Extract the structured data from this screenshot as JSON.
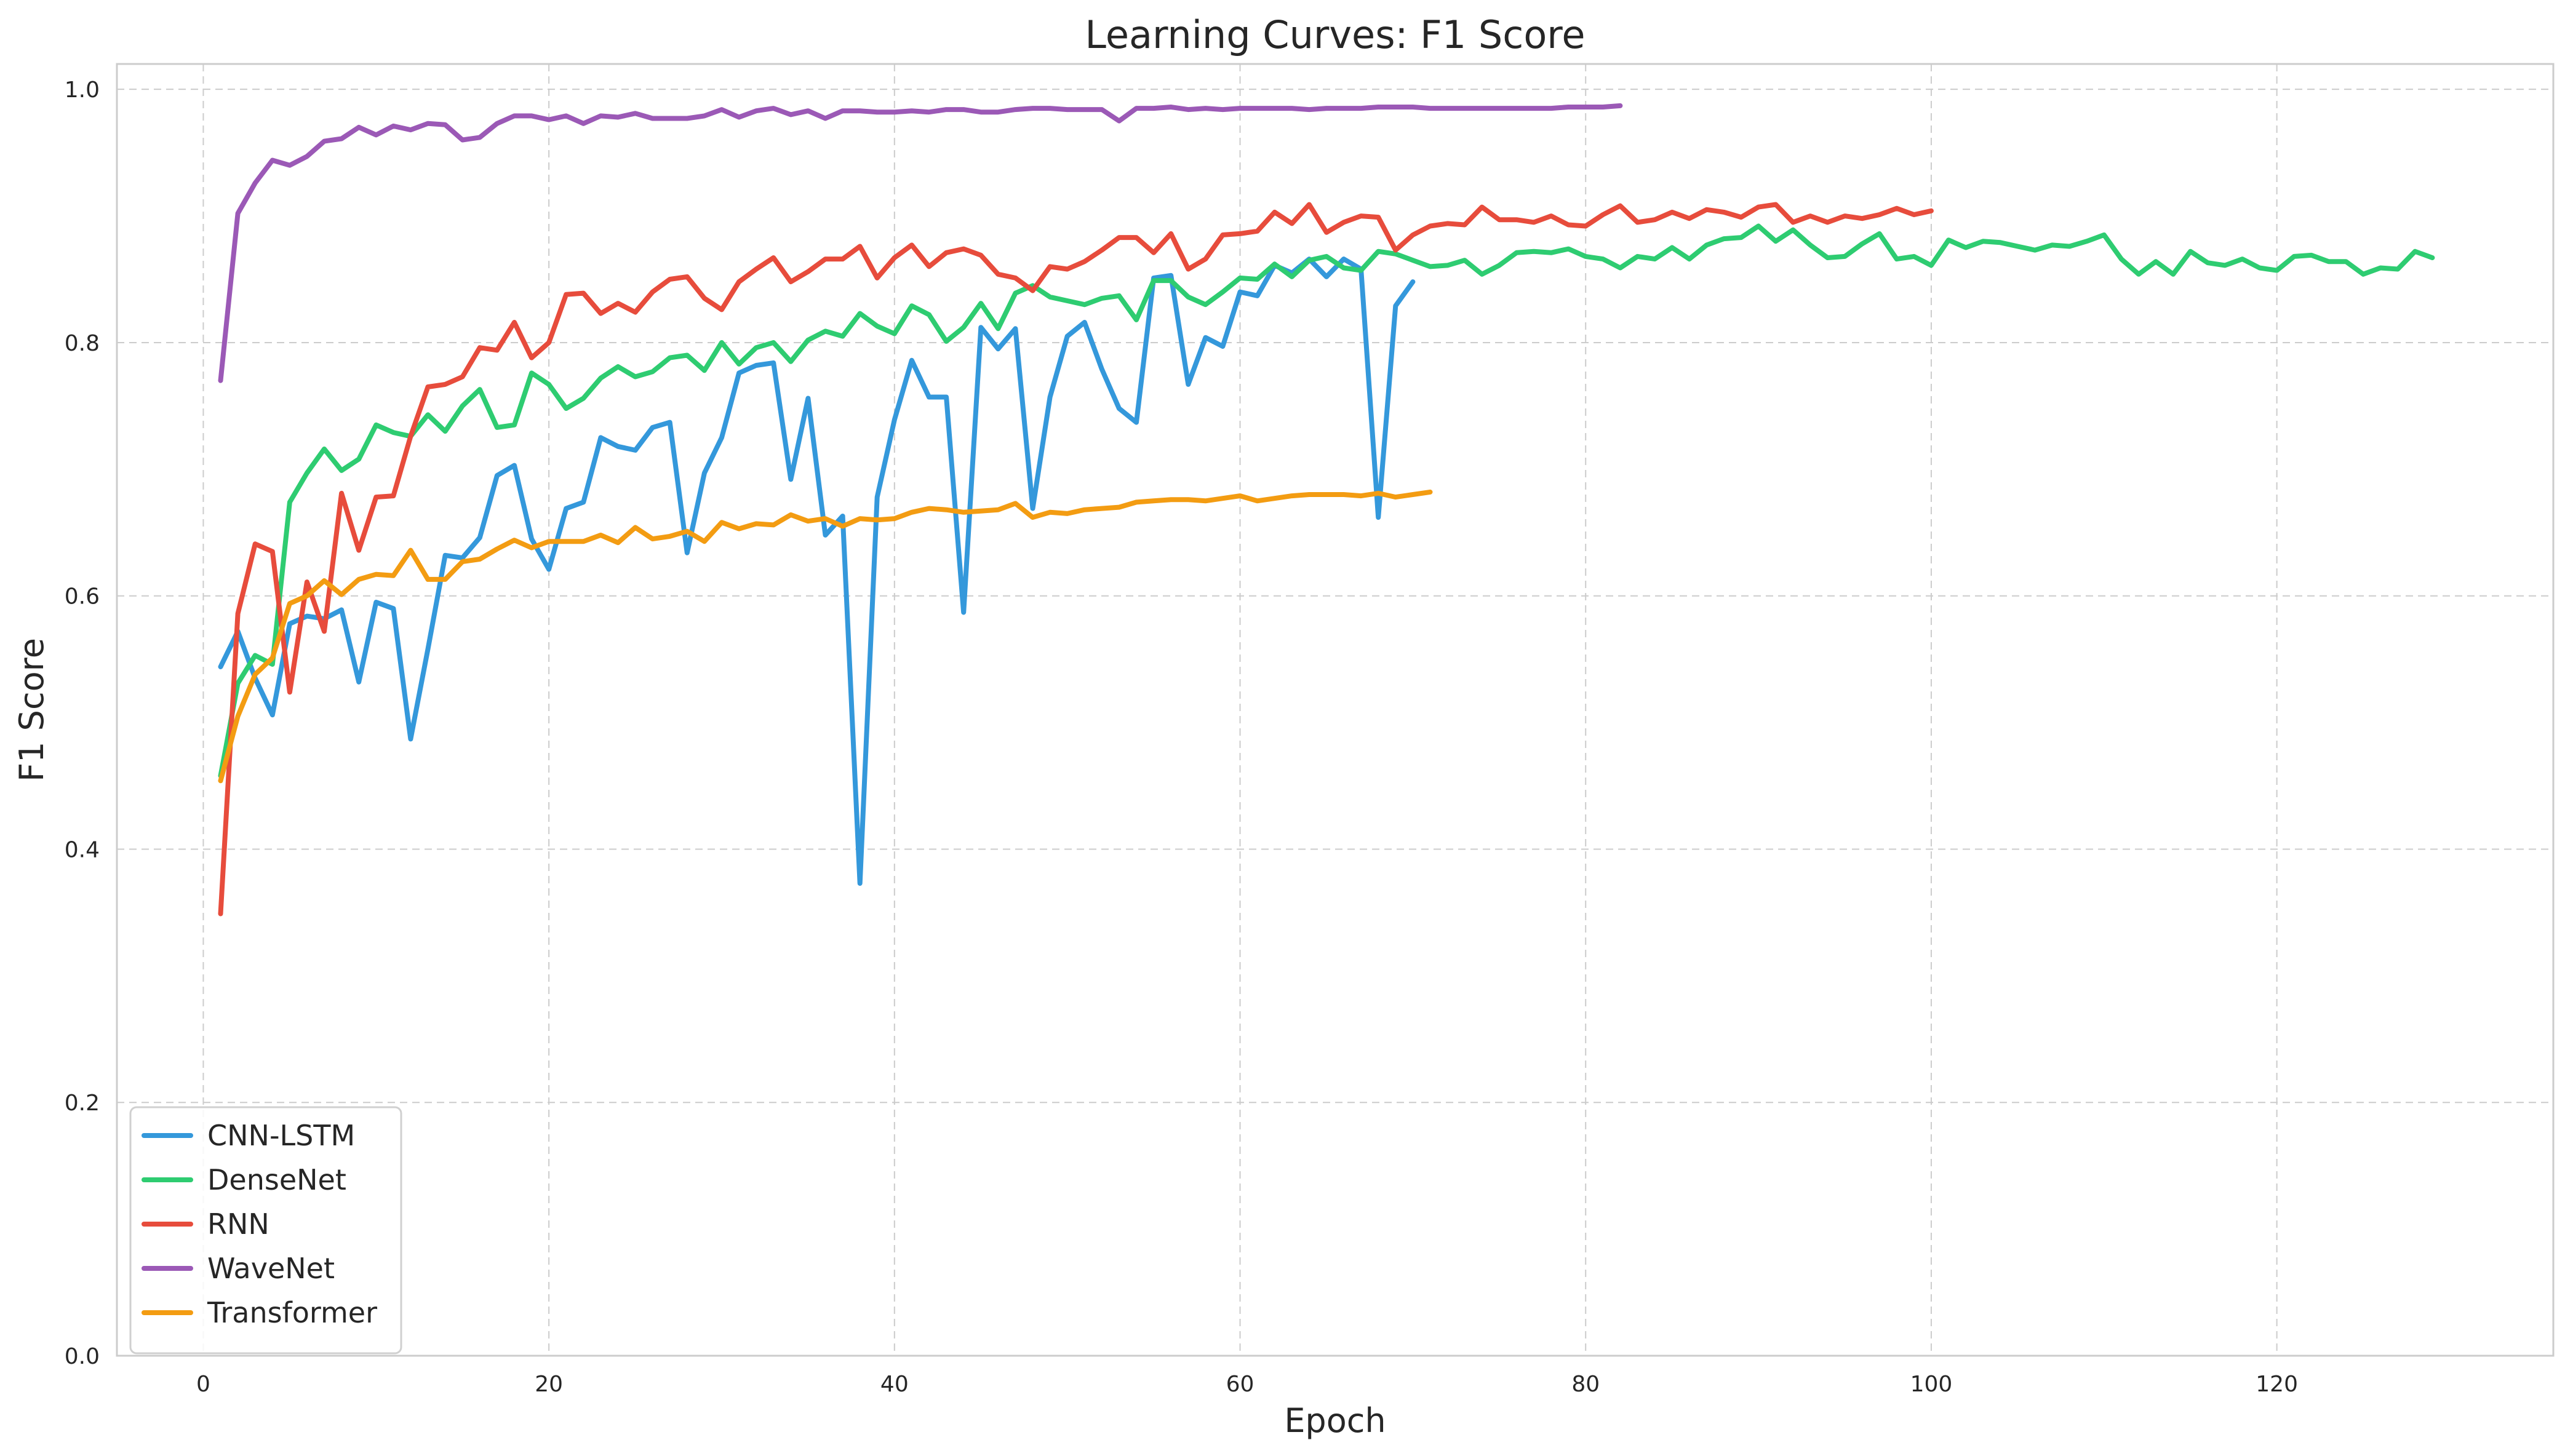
{
  "chart_data": {
    "type": "line",
    "title": "Learning Curves: F1 Score",
    "xlabel": "Epoch",
    "ylabel": "F1 Score",
    "xlim": [
      -5,
      136
    ],
    "ylim": [
      0.0,
      1.02
    ],
    "xticks": [
      0,
      20,
      40,
      60,
      80,
      100,
      120
    ],
    "yticks": [
      0.0,
      0.2,
      0.4,
      0.6,
      0.8,
      1.0
    ],
    "xtick_labels": [
      "0",
      "20",
      "40",
      "60",
      "80",
      "100",
      "120"
    ],
    "ytick_labels": [
      "0.0",
      "0.2",
      "0.4",
      "0.6",
      "0.8",
      "1.0"
    ],
    "grid": true,
    "legend_position": "lower-left",
    "series": [
      {
        "name": "CNN-LSTM",
        "color": "#3498db",
        "values": [
          0.544,
          0.572,
          0.535,
          0.506,
          0.578,
          0.584,
          0.582,
          0.589,
          0.532,
          0.595,
          0.59,
          0.487,
          0.558,
          0.632,
          0.63,
          0.646,
          0.695,
          0.703,
          0.645,
          0.621,
          0.669,
          0.674,
          0.725,
          0.718,
          0.715,
          0.733,
          0.737,
          0.634,
          0.697,
          0.725,
          0.776,
          0.782,
          0.784,
          0.692,
          0.756,
          0.648,
          0.663,
          0.373,
          0.678,
          0.739,
          0.786,
          0.757,
          0.757,
          0.587,
          0.812,
          0.795,
          0.811,
          0.669,
          0.757,
          0.805,
          0.816,
          0.779,
          0.748,
          0.737,
          0.851,
          0.853,
          0.767,
          0.804,
          0.797,
          0.84,
          0.837,
          0.861,
          0.855,
          0.866,
          0.852,
          0.866,
          0.858,
          0.662,
          0.829,
          0.848
        ]
      },
      {
        "name": "DenseNet",
        "color": "#2ecc71",
        "values": [
          0.458,
          0.531,
          0.553,
          0.546,
          0.674,
          0.697,
          0.716,
          0.699,
          0.708,
          0.735,
          0.729,
          0.726,
          0.743,
          0.73,
          0.75,
          0.763,
          0.733,
          0.735,
          0.776,
          0.767,
          0.748,
          0.756,
          0.772,
          0.781,
          0.773,
          0.777,
          0.788,
          0.79,
          0.778,
          0.8,
          0.783,
          0.796,
          0.8,
          0.785,
          0.802,
          0.809,
          0.805,
          0.823,
          0.813,
          0.807,
          0.829,
          0.822,
          0.801,
          0.812,
          0.831,
          0.811,
          0.839,
          0.845,
          0.836,
          0.833,
          0.83,
          0.835,
          0.837,
          0.818,
          0.849,
          0.849,
          0.836,
          0.83,
          0.84,
          0.851,
          0.85,
          0.862,
          0.852,
          0.865,
          0.868,
          0.859,
          0.857,
          0.872,
          0.87,
          0.865,
          0.86,
          0.861,
          0.865,
          0.854,
          0.861,
          0.871,
          0.872,
          0.871,
          0.874,
          0.868,
          0.866,
          0.859,
          0.868,
          0.866,
          0.875,
          0.866,
          0.877,
          0.882,
          0.883,
          0.892,
          0.88,
          0.889,
          0.877,
          0.867,
          0.868,
          0.878,
          0.886,
          0.866,
          0.868,
          0.861,
          0.881,
          0.875,
          0.88,
          0.879,
          0.876,
          0.873,
          0.877,
          0.876,
          0.88,
          0.885,
          0.866,
          0.854,
          0.864,
          0.854,
          0.872,
          0.863,
          0.861,
          0.866,
          0.859,
          0.857,
          0.868,
          0.869,
          0.864,
          0.864,
          0.854,
          0.859,
          0.858,
          0.872,
          0.867
        ]
      },
      {
        "name": "RNN",
        "color": "#e74c3c",
        "values": [
          0.349,
          0.586,
          0.641,
          0.635,
          0.524,
          0.611,
          0.572,
          0.681,
          0.636,
          0.678,
          0.679,
          0.726,
          0.765,
          0.767,
          0.773,
          0.796,
          0.794,
          0.816,
          0.788,
          0.8,
          0.838,
          0.839,
          0.823,
          0.831,
          0.824,
          0.84,
          0.85,
          0.852,
          0.835,
          0.826,
          0.848,
          0.858,
          0.867,
          0.848,
          0.856,
          0.866,
          0.866,
          0.876,
          0.851,
          0.867,
          0.877,
          0.86,
          0.871,
          0.874,
          0.869,
          0.854,
          0.851,
          0.841,
          0.86,
          0.858,
          0.864,
          0.873,
          0.883,
          0.883,
          0.871,
          0.886,
          0.858,
          0.866,
          0.885,
          0.886,
          0.888,
          0.903,
          0.894,
          0.909,
          0.887,
          0.895,
          0.9,
          0.899,
          0.873,
          0.885,
          0.892,
          0.894,
          0.893,
          0.907,
          0.897,
          0.897,
          0.895,
          0.9,
          0.893,
          0.892,
          0.901,
          0.908,
          0.895,
          0.897,
          0.903,
          0.898,
          0.905,
          0.903,
          0.899,
          0.907,
          0.909,
          0.895,
          0.9,
          0.895,
          0.9,
          0.898,
          0.901,
          0.906,
          0.901,
          0.904
        ]
      },
      {
        "name": "WaveNet",
        "color": "#9b59b6",
        "values": [
          0.77,
          0.902,
          0.926,
          0.944,
          0.94,
          0.947,
          0.959,
          0.961,
          0.97,
          0.964,
          0.971,
          0.968,
          0.973,
          0.972,
          0.96,
          0.962,
          0.973,
          0.979,
          0.979,
          0.976,
          0.979,
          0.973,
          0.979,
          0.978,
          0.981,
          0.977,
          0.977,
          0.977,
          0.979,
          0.984,
          0.978,
          0.983,
          0.985,
          0.98,
          0.983,
          0.977,
          0.983,
          0.983,
          0.982,
          0.982,
          0.983,
          0.982,
          0.984,
          0.984,
          0.982,
          0.982,
          0.984,
          0.985,
          0.985,
          0.984,
          0.984,
          0.984,
          0.975,
          0.985,
          0.985,
          0.986,
          0.984,
          0.985,
          0.984,
          0.985,
          0.985,
          0.985,
          0.985,
          0.984,
          0.985,
          0.985,
          0.985,
          0.986,
          0.986,
          0.986,
          0.985,
          0.985,
          0.985,
          0.985,
          0.985,
          0.985,
          0.985,
          0.985,
          0.986,
          0.986,
          0.986,
          0.987
        ]
      },
      {
        "name": "Transformer",
        "color": "#f39c12",
        "values": [
          0.454,
          0.505,
          0.538,
          0.551,
          0.594,
          0.6,
          0.612,
          0.601,
          0.613,
          0.617,
          0.616,
          0.636,
          0.613,
          0.613,
          0.627,
          0.629,
          0.637,
          0.644,
          0.638,
          0.643,
          0.643,
          0.643,
          0.648,
          0.642,
          0.654,
          0.645,
          0.647,
          0.651,
          0.643,
          0.658,
          0.653,
          0.657,
          0.656,
          0.664,
          0.659,
          0.661,
          0.655,
          0.661,
          0.66,
          0.661,
          0.666,
          0.669,
          0.668,
          0.666,
          0.667,
          0.668,
          0.673,
          0.662,
          0.666,
          0.665,
          0.668,
          0.669,
          0.67,
          0.674,
          0.675,
          0.676,
          0.676,
          0.675,
          0.677,
          0.679,
          0.675,
          0.677,
          0.679,
          0.68,
          0.68,
          0.68,
          0.679,
          0.681,
          0.678,
          0.68,
          0.682
        ]
      }
    ]
  }
}
